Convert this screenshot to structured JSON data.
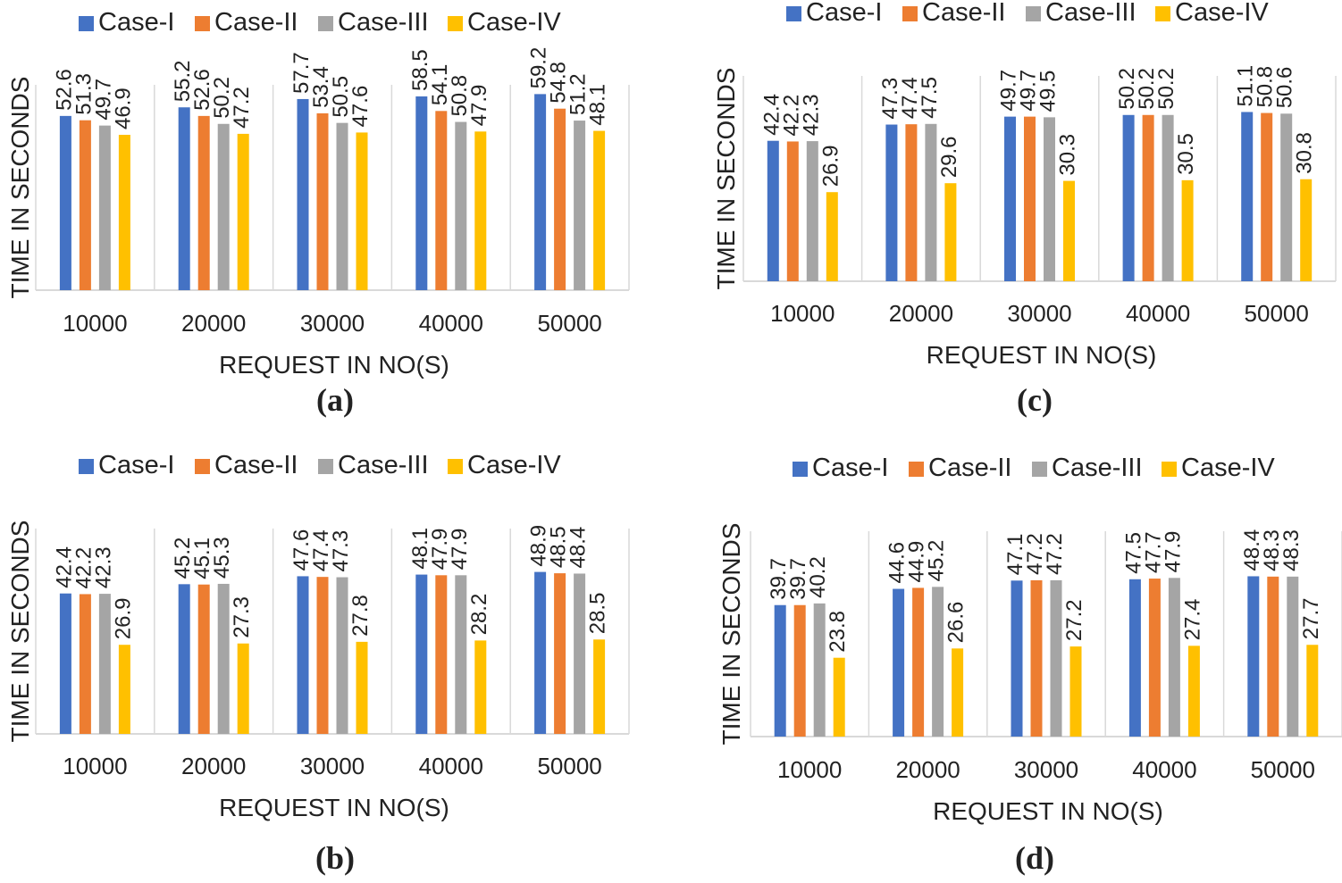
{
  "legend": [
    "Case-I",
    "Case-II",
    "Case-III",
    "Case-IV"
  ],
  "colors": [
    "#4472C4",
    "#ED7D31",
    "#A5A5A5",
    "#FFC000"
  ],
  "chart_data": [
    {
      "type": "bar",
      "panel": "(a)",
      "xlabel": "REQUEST IN NO(S)",
      "ylabel": "TIME IN SECONDS",
      "categories": [
        "10000",
        "20000",
        "30000",
        "40000",
        "50000"
      ],
      "ylim": [
        0,
        80
      ],
      "grid": false,
      "legend_position": "top",
      "series": [
        {
          "name": "Case-I",
          "values": [
            52.6,
            55.2,
            57.7,
            58.5,
            59.2
          ]
        },
        {
          "name": "Case-II",
          "values": [
            51.3,
            52.6,
            53.4,
            54.1,
            54.8
          ]
        },
        {
          "name": "Case-III",
          "values": [
            49.7,
            50.2,
            50.5,
            50.8,
            51.2
          ]
        },
        {
          "name": "Case-IV",
          "values": [
            46.9,
            47.2,
            47.6,
            47.9,
            48.1
          ]
        }
      ]
    },
    {
      "type": "bar",
      "panel": "(b)",
      "xlabel": "REQUEST IN NO(S)",
      "ylabel": "TIME IN SECONDS",
      "categories": [
        "10000",
        "20000",
        "30000",
        "40000",
        "50000"
      ],
      "ylim": [
        0,
        80
      ],
      "grid": false,
      "legend_position": "top",
      "series": [
        {
          "name": "Case-I",
          "values": [
            42.4,
            45.2,
            47.6,
            48.1,
            48.9
          ]
        },
        {
          "name": "Case-II",
          "values": [
            42.2,
            45.1,
            47.4,
            47.9,
            48.5
          ]
        },
        {
          "name": "Case-III",
          "values": [
            42.3,
            45.3,
            47.3,
            47.9,
            48.4
          ]
        },
        {
          "name": "Case-IV",
          "values": [
            26.9,
            27.3,
            27.8,
            28.2,
            28.5
          ]
        }
      ]
    },
    {
      "type": "bar",
      "panel": "(c)",
      "xlabel": "REQUEST IN NO(S)",
      "ylabel": "TIME IN SECONDS",
      "categories": [
        "10000",
        "20000",
        "30000",
        "40000",
        "50000"
      ],
      "ylim": [
        0,
        80
      ],
      "grid": false,
      "legend_position": "top",
      "series": [
        {
          "name": "Case-I",
          "values": [
            42.4,
            47.3,
            49.7,
            50.2,
            51.1
          ]
        },
        {
          "name": "Case-II",
          "values": [
            42.2,
            47.4,
            49.7,
            50.2,
            50.8
          ]
        },
        {
          "name": "Case-III",
          "values": [
            42.3,
            47.5,
            49.5,
            50.2,
            50.6
          ]
        },
        {
          "name": "Case-IV",
          "values": [
            26.9,
            29.6,
            30.3,
            30.5,
            30.8
          ]
        }
      ]
    },
    {
      "type": "bar",
      "panel": "(d)",
      "xlabel": "REQUEST IN NO(S)",
      "ylabel": "TIME IN SECONDS",
      "categories": [
        "10000",
        "20000",
        "30000",
        "40000",
        "50000"
      ],
      "ylim": [
        0,
        80
      ],
      "grid": false,
      "legend_position": "top",
      "series": [
        {
          "name": "Case-I",
          "values": [
            39.7,
            44.6,
            47.1,
            47.5,
            48.4
          ]
        },
        {
          "name": "Case-II",
          "values": [
            39.7,
            44.9,
            47.2,
            47.7,
            48.3
          ]
        },
        {
          "name": "Case-III",
          "values": [
            40.2,
            45.2,
            47.2,
            47.9,
            48.3
          ]
        },
        {
          "name": "Case-IV",
          "values": [
            23.8,
            26.6,
            27.2,
            27.4,
            27.7
          ]
        }
      ]
    }
  ]
}
